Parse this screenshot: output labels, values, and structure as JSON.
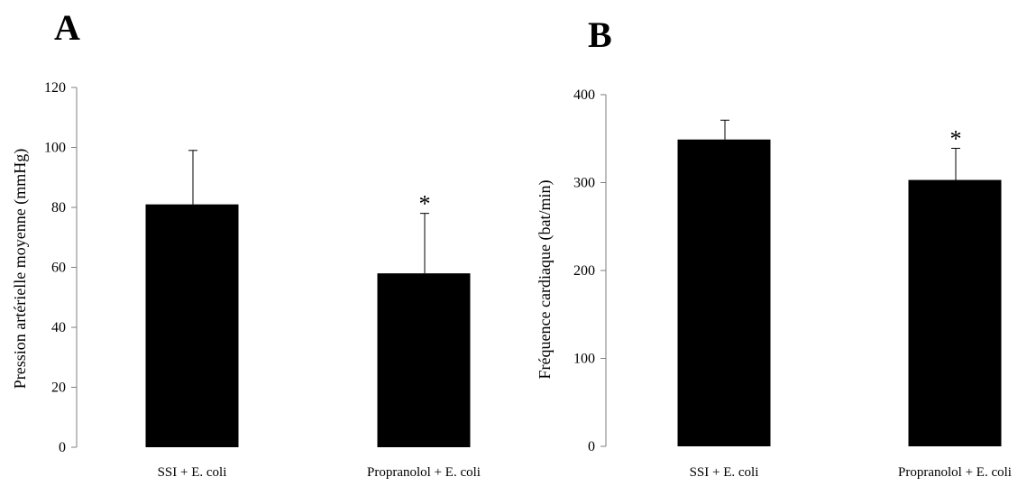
{
  "chart_data": [
    {
      "panel": "A",
      "type": "bar",
      "categories": [
        "SSI + E. coli",
        "Propranolol + E. coli"
      ],
      "values": [
        81,
        58
      ],
      "error_bars": [
        18,
        20
      ],
      "significance": [
        "",
        "*"
      ],
      "ylabel": "Pression artérielle moyenne (mmHg)",
      "ylim": [
        0,
        120
      ],
      "yticks": [
        0,
        20,
        40,
        60,
        80,
        100,
        120
      ],
      "bar_color": "#000000",
      "grid": false,
      "legend": "none"
    },
    {
      "panel": "B",
      "type": "bar",
      "categories": [
        "SSI + E. coli",
        "Propranolol + E. coli"
      ],
      "values": [
        349,
        303
      ],
      "error_bars": [
        22,
        36
      ],
      "significance": [
        "",
        "*"
      ],
      "ylabel": "Fréquence cardiaque (bat/min)",
      "ylim": [
        0,
        400
      ],
      "yticks": [
        0,
        100,
        200,
        300,
        400
      ],
      "bar_color": "#000000",
      "grid": false,
      "legend": "none"
    }
  ]
}
